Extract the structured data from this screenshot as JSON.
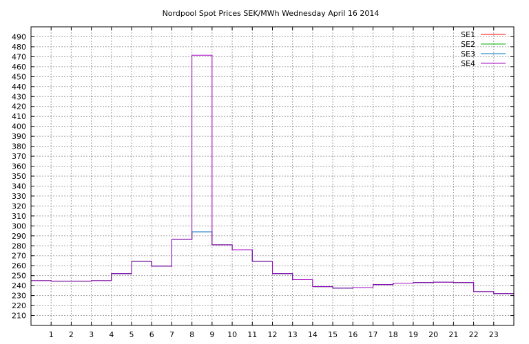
{
  "chart_data": {
    "type": "line",
    "step": true,
    "title": "Nordpool Spot Prices SEK/MWh Wednesday April 16 2014",
    "xlabel": "",
    "ylabel": "",
    "xlim": [
      0,
      24
    ],
    "ylim": [
      200,
      500
    ],
    "x_ticks": [
      1,
      2,
      3,
      4,
      5,
      6,
      7,
      8,
      9,
      10,
      11,
      12,
      13,
      14,
      15,
      16,
      17,
      18,
      19,
      20,
      21,
      22,
      23
    ],
    "y_ticks": [
      210,
      220,
      230,
      240,
      250,
      260,
      270,
      280,
      290,
      300,
      310,
      320,
      330,
      340,
      350,
      360,
      370,
      380,
      390,
      400,
      410,
      420,
      430,
      440,
      450,
      460,
      470,
      480,
      490
    ],
    "grid": true,
    "legend_position": "top-right",
    "x": [
      0,
      1,
      2,
      3,
      4,
      5,
      6,
      7,
      8,
      9,
      10,
      11,
      12,
      13,
      14,
      15,
      16,
      17,
      18,
      19,
      20,
      21,
      22,
      23
    ],
    "series": [
      {
        "name": "SE1",
        "color": "#ff0000",
        "values": [
          245,
          244.5,
          244.5,
          245,
          252,
          264.5,
          259.5,
          286.5,
          294,
          281,
          276,
          264.5,
          252,
          246,
          239,
          237.5,
          238,
          241,
          242.5,
          243,
          243.5,
          243,
          234,
          232
        ]
      },
      {
        "name": "SE2",
        "color": "#00aa00",
        "values": [
          245,
          244.5,
          244.5,
          245,
          252,
          264.5,
          259.5,
          286.5,
          294,
          281,
          276,
          264.5,
          252,
          246,
          239,
          237.5,
          238,
          241,
          242.5,
          243,
          243.5,
          243,
          234,
          232
        ]
      },
      {
        "name": "SE3",
        "color": "#0070c0",
        "values": [
          245,
          244.5,
          244.5,
          245,
          252,
          264.5,
          259.5,
          286.5,
          294,
          281,
          276,
          264.5,
          252,
          246,
          239,
          237.5,
          238,
          241,
          242.5,
          243,
          243.5,
          243,
          234,
          232
        ]
      },
      {
        "name": "SE4",
        "color": "#a000c0",
        "values": [
          245,
          244.5,
          244.5,
          245,
          252,
          264.5,
          259.5,
          286.5,
          471.5,
          281,
          276,
          264.5,
          252,
          246,
          239,
          237.5,
          238,
          241,
          242.5,
          243,
          243.5,
          243,
          234,
          232
        ]
      }
    ]
  }
}
